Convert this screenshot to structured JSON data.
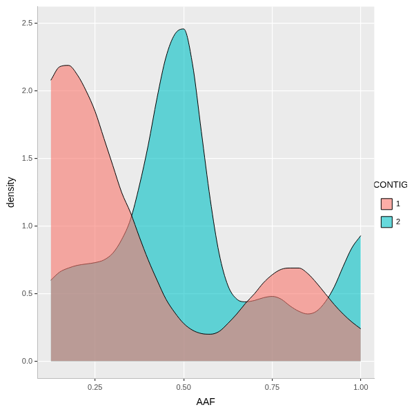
{
  "chart_data": {
    "type": "area",
    "x_label": "AAF",
    "y_label": "density",
    "legend": "right",
    "legend_title": "CONTIG",
    "grid": true,
    "x": [
      0.125,
      0.15,
      0.175,
      0.2,
      0.225,
      0.25,
      0.275,
      0.3,
      0.325,
      0.35,
      0.375,
      0.4,
      0.425,
      0.45,
      0.475,
      0.5,
      0.525,
      0.55,
      0.575,
      0.6,
      0.625,
      0.65,
      0.675,
      0.7,
      0.725,
      0.75,
      0.775,
      0.8,
      0.825,
      0.85,
      0.875,
      0.9,
      0.925,
      0.95,
      0.975,
      1.0
    ],
    "series": [
      {
        "name": "1",
        "color": "#F8766D",
        "values": [
          2.08,
          2.18,
          2.19,
          2.12,
          2.0,
          1.85,
          1.65,
          1.45,
          1.25,
          1.1,
          0.92,
          0.75,
          0.6,
          0.46,
          0.36,
          0.28,
          0.23,
          0.205,
          0.2,
          0.22,
          0.28,
          0.35,
          0.43,
          0.5,
          0.58,
          0.64,
          0.68,
          0.69,
          0.69,
          0.65,
          0.58,
          0.5,
          0.42,
          0.35,
          0.29,
          0.24
        ]
      },
      {
        "name": "2",
        "color": "#00BFC4",
        "values": [
          0.6,
          0.66,
          0.69,
          0.71,
          0.72,
          0.73,
          0.75,
          0.8,
          0.9,
          1.05,
          1.3,
          1.6,
          1.95,
          2.25,
          2.42,
          2.46,
          2.2,
          1.7,
          1.2,
          0.8,
          0.56,
          0.46,
          0.44,
          0.45,
          0.47,
          0.48,
          0.46,
          0.41,
          0.37,
          0.35,
          0.37,
          0.44,
          0.55,
          0.7,
          0.84,
          0.93
        ]
      }
    ],
    "xlim": [
      0.087,
      1.038
    ],
    "xticks": [
      0.25,
      {
        "value": 0.5,
        "label": "0.50"
      },
      0.75,
      {
        "value": 1.0,
        "label": "1.00"
      }
    ],
    "ylim": [
      -0.125,
      2.625
    ],
    "yticks": [
      {
        "value": 0,
        "label": "0.0"
      },
      0.5,
      {
        "value": 1.0,
        "label": "1.0"
      },
      1.5,
      {
        "value": 2.0,
        "label": "2.0"
      },
      2.5
    ]
  }
}
